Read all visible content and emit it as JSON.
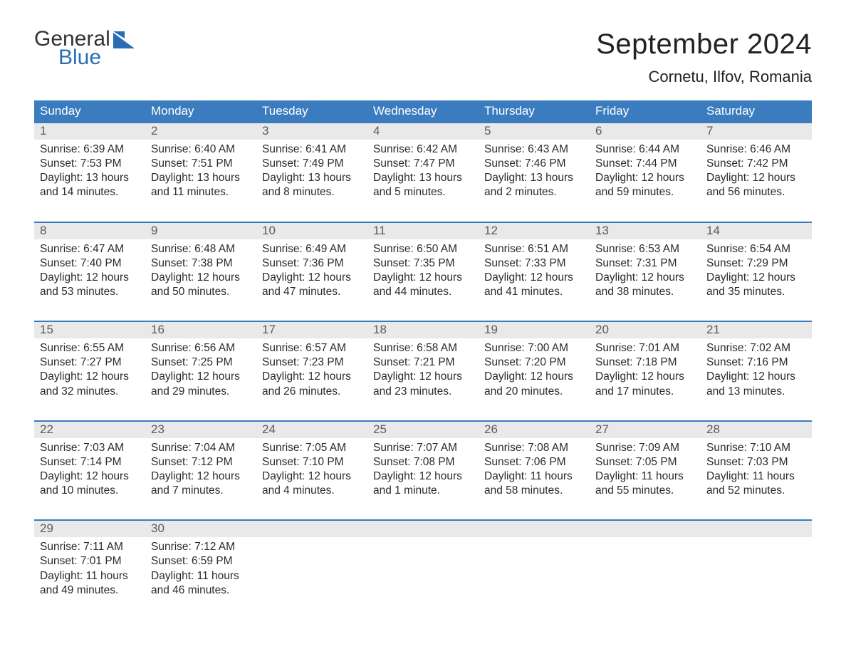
{
  "logo": {
    "top": "General",
    "bottom": "Blue",
    "accent": "#2a6db2"
  },
  "title": "September 2024",
  "location": "Cornetu, Ilfov, Romania",
  "colors": {
    "header_bg": "#3b7cbf",
    "header_text": "#ffffff",
    "week_border": "#3b7cbf",
    "daynum_bg": "#e9e9e9",
    "daynum_text": "#5b5b5b",
    "body_text": "#2b2b2b",
    "page_bg": "#ffffff"
  },
  "typography": {
    "title_fontsize": 40,
    "location_fontsize": 22,
    "dow_fontsize": 17,
    "daynum_fontsize": 17,
    "cell_fontsize": 15.5
  },
  "daysOfWeek": [
    "Sunday",
    "Monday",
    "Tuesday",
    "Wednesday",
    "Thursday",
    "Friday",
    "Saturday"
  ],
  "weeks": [
    [
      {
        "n": "1",
        "sunrise": "Sunrise: 6:39 AM",
        "sunset": "Sunset: 7:53 PM",
        "day1": "Daylight: 13 hours",
        "day2": "and 14 minutes."
      },
      {
        "n": "2",
        "sunrise": "Sunrise: 6:40 AM",
        "sunset": "Sunset: 7:51 PM",
        "day1": "Daylight: 13 hours",
        "day2": "and 11 minutes."
      },
      {
        "n": "3",
        "sunrise": "Sunrise: 6:41 AM",
        "sunset": "Sunset: 7:49 PM",
        "day1": "Daylight: 13 hours",
        "day2": "and 8 minutes."
      },
      {
        "n": "4",
        "sunrise": "Sunrise: 6:42 AM",
        "sunset": "Sunset: 7:47 PM",
        "day1": "Daylight: 13 hours",
        "day2": "and 5 minutes."
      },
      {
        "n": "5",
        "sunrise": "Sunrise: 6:43 AM",
        "sunset": "Sunset: 7:46 PM",
        "day1": "Daylight: 13 hours",
        "day2": "and 2 minutes."
      },
      {
        "n": "6",
        "sunrise": "Sunrise: 6:44 AM",
        "sunset": "Sunset: 7:44 PM",
        "day1": "Daylight: 12 hours",
        "day2": "and 59 minutes."
      },
      {
        "n": "7",
        "sunrise": "Sunrise: 6:46 AM",
        "sunset": "Sunset: 7:42 PM",
        "day1": "Daylight: 12 hours",
        "day2": "and 56 minutes."
      }
    ],
    [
      {
        "n": "8",
        "sunrise": "Sunrise: 6:47 AM",
        "sunset": "Sunset: 7:40 PM",
        "day1": "Daylight: 12 hours",
        "day2": "and 53 minutes."
      },
      {
        "n": "9",
        "sunrise": "Sunrise: 6:48 AM",
        "sunset": "Sunset: 7:38 PM",
        "day1": "Daylight: 12 hours",
        "day2": "and 50 minutes."
      },
      {
        "n": "10",
        "sunrise": "Sunrise: 6:49 AM",
        "sunset": "Sunset: 7:36 PM",
        "day1": "Daylight: 12 hours",
        "day2": "and 47 minutes."
      },
      {
        "n": "11",
        "sunrise": "Sunrise: 6:50 AM",
        "sunset": "Sunset: 7:35 PM",
        "day1": "Daylight: 12 hours",
        "day2": "and 44 minutes."
      },
      {
        "n": "12",
        "sunrise": "Sunrise: 6:51 AM",
        "sunset": "Sunset: 7:33 PM",
        "day1": "Daylight: 12 hours",
        "day2": "and 41 minutes."
      },
      {
        "n": "13",
        "sunrise": "Sunrise: 6:53 AM",
        "sunset": "Sunset: 7:31 PM",
        "day1": "Daylight: 12 hours",
        "day2": "and 38 minutes."
      },
      {
        "n": "14",
        "sunrise": "Sunrise: 6:54 AM",
        "sunset": "Sunset: 7:29 PM",
        "day1": "Daylight: 12 hours",
        "day2": "and 35 minutes."
      }
    ],
    [
      {
        "n": "15",
        "sunrise": "Sunrise: 6:55 AM",
        "sunset": "Sunset: 7:27 PM",
        "day1": "Daylight: 12 hours",
        "day2": "and 32 minutes."
      },
      {
        "n": "16",
        "sunrise": "Sunrise: 6:56 AM",
        "sunset": "Sunset: 7:25 PM",
        "day1": "Daylight: 12 hours",
        "day2": "and 29 minutes."
      },
      {
        "n": "17",
        "sunrise": "Sunrise: 6:57 AM",
        "sunset": "Sunset: 7:23 PM",
        "day1": "Daylight: 12 hours",
        "day2": "and 26 minutes."
      },
      {
        "n": "18",
        "sunrise": "Sunrise: 6:58 AM",
        "sunset": "Sunset: 7:21 PM",
        "day1": "Daylight: 12 hours",
        "day2": "and 23 minutes."
      },
      {
        "n": "19",
        "sunrise": "Sunrise: 7:00 AM",
        "sunset": "Sunset: 7:20 PM",
        "day1": "Daylight: 12 hours",
        "day2": "and 20 minutes."
      },
      {
        "n": "20",
        "sunrise": "Sunrise: 7:01 AM",
        "sunset": "Sunset: 7:18 PM",
        "day1": "Daylight: 12 hours",
        "day2": "and 17 minutes."
      },
      {
        "n": "21",
        "sunrise": "Sunrise: 7:02 AM",
        "sunset": "Sunset: 7:16 PM",
        "day1": "Daylight: 12 hours",
        "day2": "and 13 minutes."
      }
    ],
    [
      {
        "n": "22",
        "sunrise": "Sunrise: 7:03 AM",
        "sunset": "Sunset: 7:14 PM",
        "day1": "Daylight: 12 hours",
        "day2": "and 10 minutes."
      },
      {
        "n": "23",
        "sunrise": "Sunrise: 7:04 AM",
        "sunset": "Sunset: 7:12 PM",
        "day1": "Daylight: 12 hours",
        "day2": "and 7 minutes."
      },
      {
        "n": "24",
        "sunrise": "Sunrise: 7:05 AM",
        "sunset": "Sunset: 7:10 PM",
        "day1": "Daylight: 12 hours",
        "day2": "and 4 minutes."
      },
      {
        "n": "25",
        "sunrise": "Sunrise: 7:07 AM",
        "sunset": "Sunset: 7:08 PM",
        "day1": "Daylight: 12 hours",
        "day2": "and 1 minute."
      },
      {
        "n": "26",
        "sunrise": "Sunrise: 7:08 AM",
        "sunset": "Sunset: 7:06 PM",
        "day1": "Daylight: 11 hours",
        "day2": "and 58 minutes."
      },
      {
        "n": "27",
        "sunrise": "Sunrise: 7:09 AM",
        "sunset": "Sunset: 7:05 PM",
        "day1": "Daylight: 11 hours",
        "day2": "and 55 minutes."
      },
      {
        "n": "28",
        "sunrise": "Sunrise: 7:10 AM",
        "sunset": "Sunset: 7:03 PM",
        "day1": "Daylight: 11 hours",
        "day2": "and 52 minutes."
      }
    ],
    [
      {
        "n": "29",
        "sunrise": "Sunrise: 7:11 AM",
        "sunset": "Sunset: 7:01 PM",
        "day1": "Daylight: 11 hours",
        "day2": "and 49 minutes."
      },
      {
        "n": "30",
        "sunrise": "Sunrise: 7:12 AM",
        "sunset": "Sunset: 6:59 PM",
        "day1": "Daylight: 11 hours",
        "day2": "and 46 minutes."
      },
      {
        "n": "",
        "sunrise": "",
        "sunset": "",
        "day1": "",
        "day2": ""
      },
      {
        "n": "",
        "sunrise": "",
        "sunset": "",
        "day1": "",
        "day2": ""
      },
      {
        "n": "",
        "sunrise": "",
        "sunset": "",
        "day1": "",
        "day2": ""
      },
      {
        "n": "",
        "sunrise": "",
        "sunset": "",
        "day1": "",
        "day2": ""
      },
      {
        "n": "",
        "sunrise": "",
        "sunset": "",
        "day1": "",
        "day2": ""
      }
    ]
  ]
}
